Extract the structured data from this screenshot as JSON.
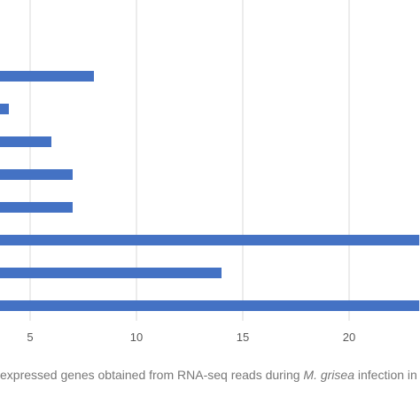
{
  "chart_data": {
    "type": "bar",
    "orientation": "horizontal",
    "title": "",
    "xlabel": "",
    "ylabel": "",
    "x_ticks": [
      "5",
      "10",
      "15",
      "20"
    ],
    "xlim": [
      3.6,
      23.3
    ],
    "grid": true,
    "values": [
      8,
      4,
      6,
      7,
      7,
      23.3,
      14,
      23.3
    ],
    "bar_color": "#4472C4",
    "grid_color": "#D9D9D9"
  },
  "caption": {
    "before": " expressed genes obtained from RNA-seq reads during ",
    "italic": "M. grisea",
    "after": " infection in p"
  }
}
